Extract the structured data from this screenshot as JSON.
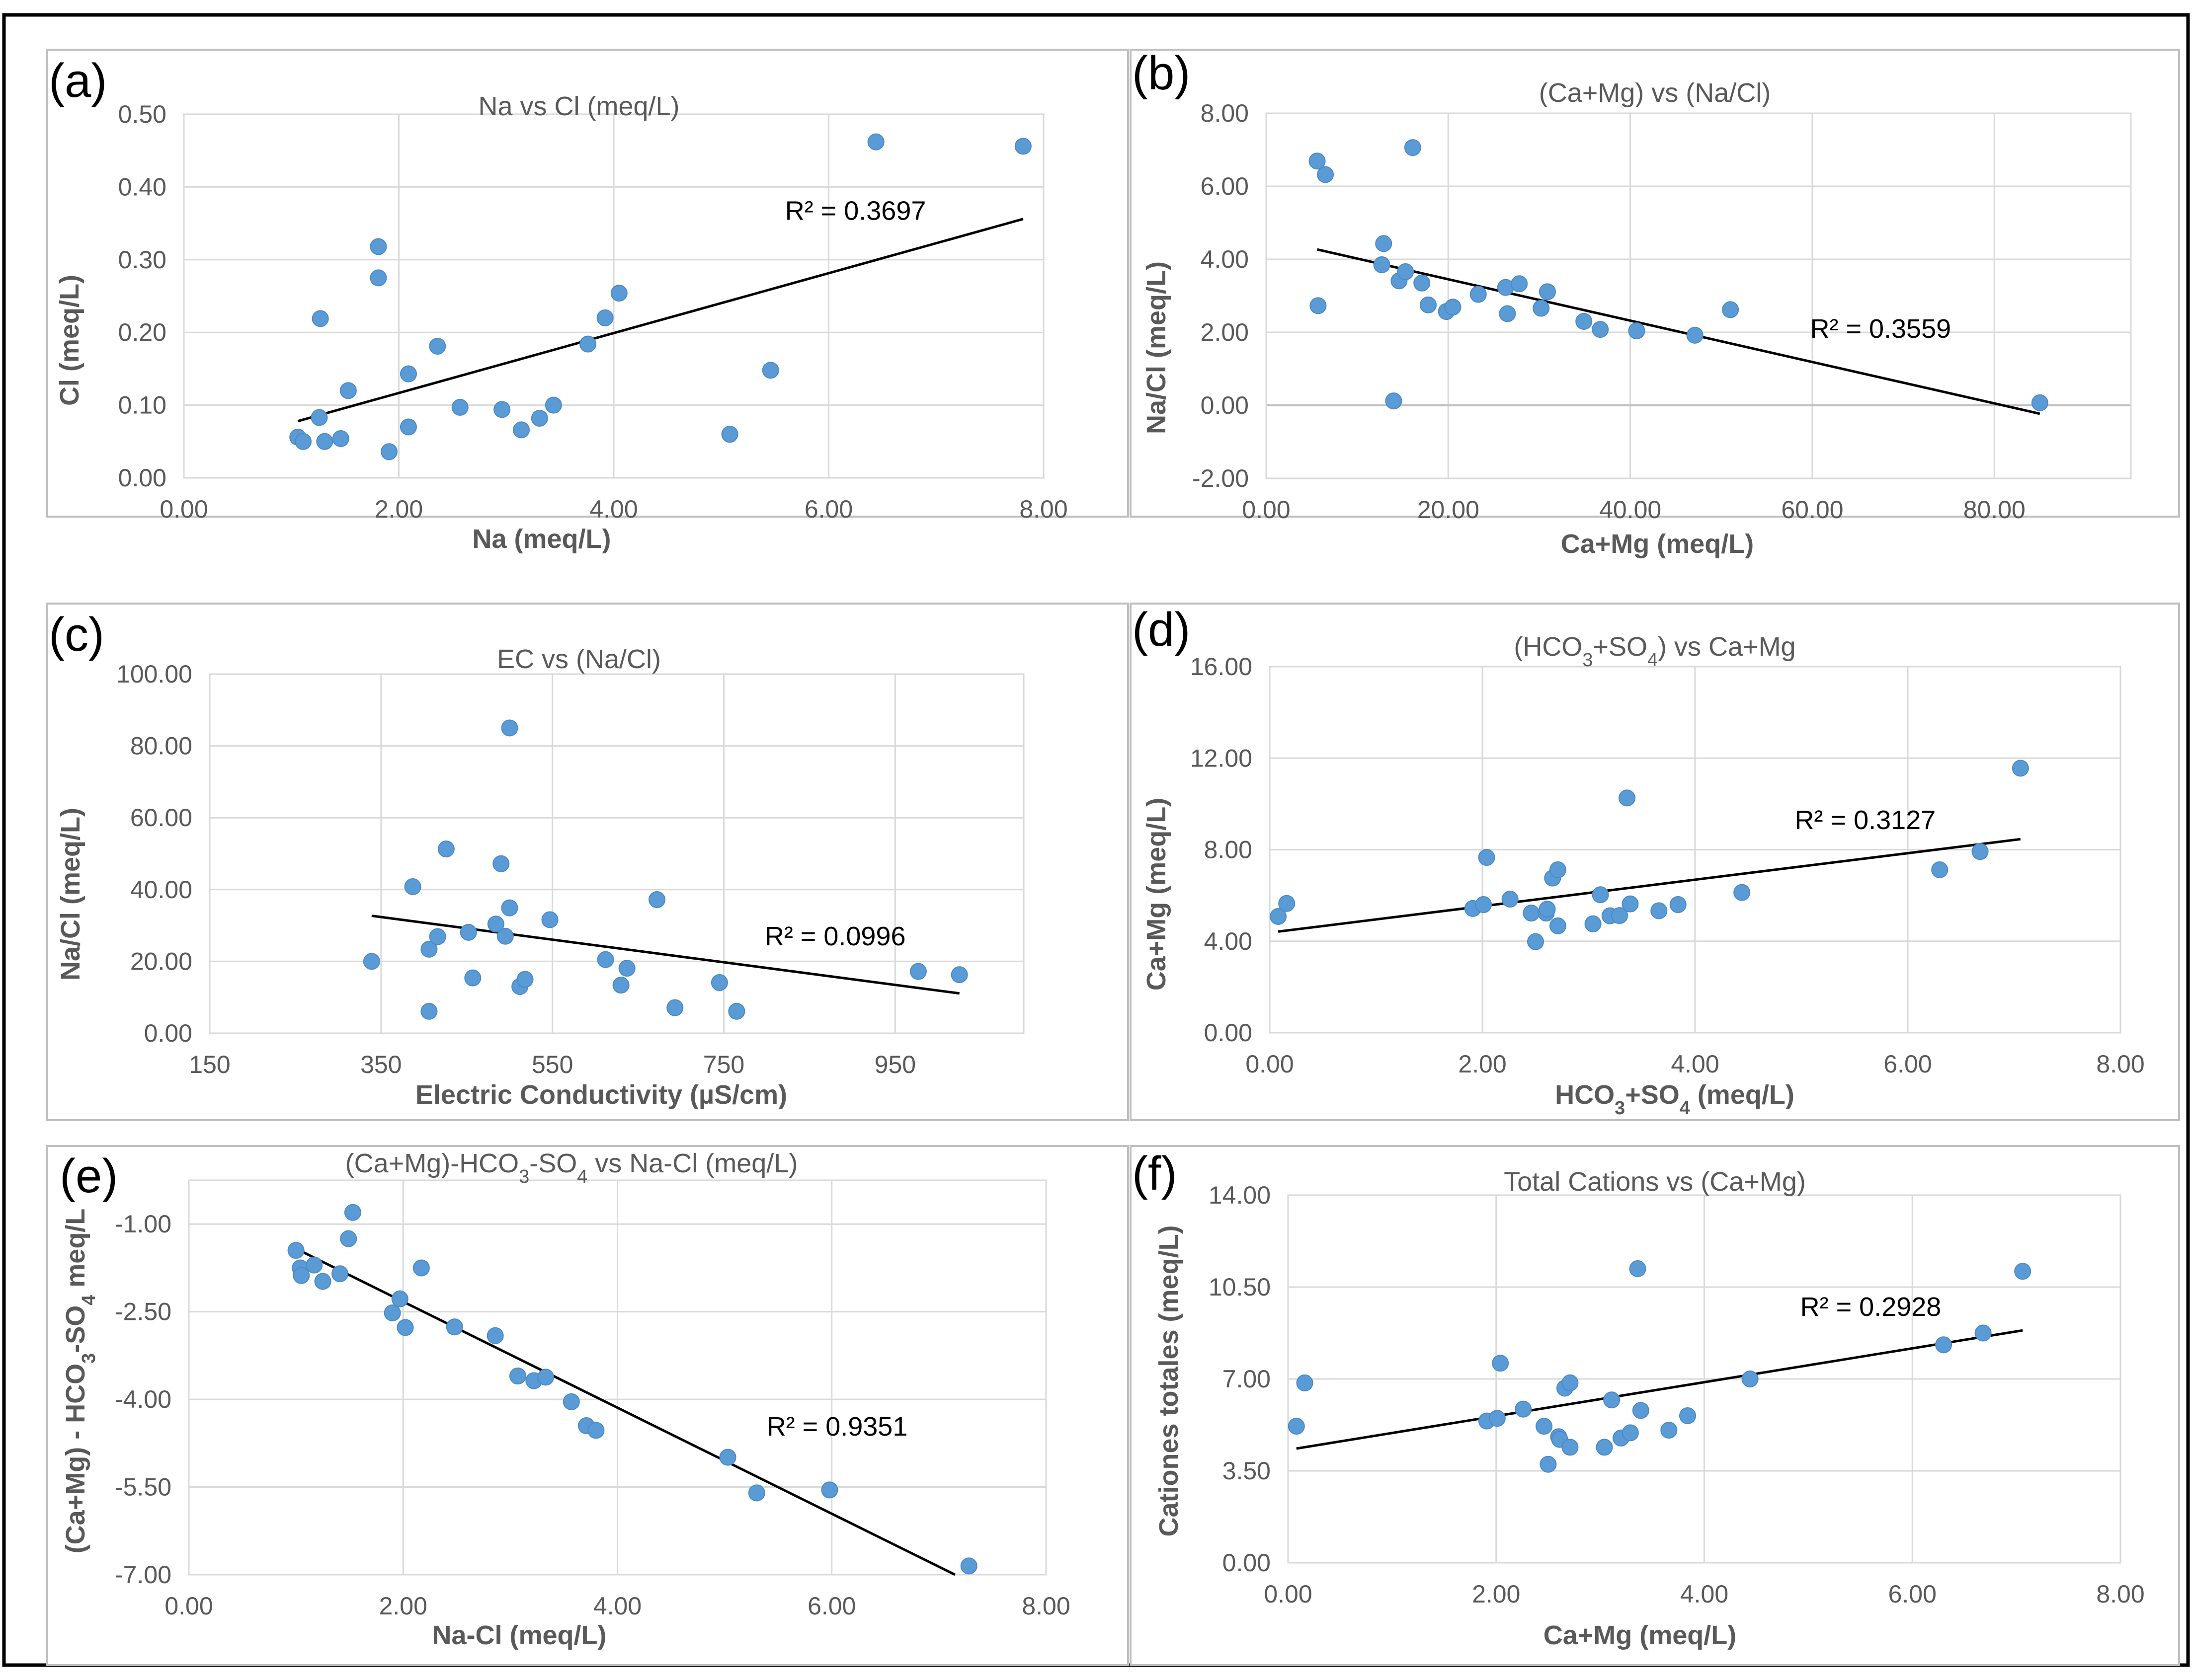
{
  "colors": {
    "point": "#5B9BD5",
    "point_edge": "#4A89C8",
    "trendline": "#000000",
    "grid": "#D9D9D9",
    "panel_border": "#BFBFBF",
    "outer_border": "#000000",
    "text": "#595959"
  },
  "chart_data": [
    {
      "id": "a",
      "panel_label": "(a)",
      "type": "scatter",
      "title": "Na vs Cl (meq/L)",
      "xlabel": "Na (meq/L)",
      "ylabel": "Cl (meq/L)",
      "xlim": [
        0,
        8
      ],
      "ylim": [
        0,
        0.5
      ],
      "x_ticks": [
        0,
        2,
        4,
        6,
        8
      ],
      "y_ticks": [
        0,
        0.1,
        0.2,
        0.3,
        0.4,
        0.5
      ],
      "x_tick_labels": [
        "0.00",
        "2.00",
        "4.00",
        "6.00",
        "8.00"
      ],
      "y_tick_labels": [
        "0.00",
        "0.10",
        "0.20",
        "0.30",
        "0.40",
        "0.50"
      ],
      "points": [
        [
          1.06,
          0.056
        ],
        [
          1.11,
          0.05
        ],
        [
          1.26,
          0.083
        ],
        [
          1.27,
          0.219
        ],
        [
          1.31,
          0.05
        ],
        [
          1.46,
          0.054
        ],
        [
          1.53,
          0.12
        ],
        [
          1.81,
          0.318
        ],
        [
          1.81,
          0.275
        ],
        [
          1.91,
          0.036
        ],
        [
          2.09,
          0.143
        ],
        [
          2.09,
          0.07
        ],
        [
          2.36,
          0.181
        ],
        [
          2.57,
          0.097
        ],
        [
          2.96,
          0.094
        ],
        [
          3.14,
          0.066
        ],
        [
          3.31,
          0.082
        ],
        [
          3.44,
          0.1
        ],
        [
          3.76,
          0.184
        ],
        [
          3.92,
          0.22
        ],
        [
          4.05,
          0.254
        ],
        [
          5.08,
          0.06
        ],
        [
          5.46,
          0.148
        ],
        [
          6.44,
          0.462
        ],
        [
          7.81,
          0.456
        ]
      ],
      "trendline": {
        "x": [
          1.06,
          7.81
        ],
        "y": [
          0.078,
          0.356
        ]
      },
      "r2_label": "R² = 0.3697",
      "r2_at": [
        6.25,
        0.355
      ]
    },
    {
      "id": "b",
      "panel_label": "(b)",
      "type": "scatter",
      "title": "(Ca+Mg) vs (Na/Cl)",
      "xlabel": "Ca+Mg (meq/L)",
      "ylabel": "Na/Cl (meq/L)",
      "xlim": [
        0,
        95
      ],
      "ylim": [
        -2,
        8
      ],
      "x_ticks": [
        0,
        20,
        40,
        60,
        80
      ],
      "y_ticks": [
        -2,
        0,
        2,
        4,
        6,
        8
      ],
      "x_tick_labels": [
        "0.00",
        "20.00",
        "40.00",
        "60.00",
        "80.00"
      ],
      "y_tick_labels": [
        "-2.00",
        "0.00",
        "2.00",
        "4.00",
        "6.00",
        "8.00"
      ],
      "points": [
        [
          5.6,
          6.69
        ],
        [
          5.7,
          2.73
        ],
        [
          6.5,
          6.32
        ],
        [
          12.7,
          3.85
        ],
        [
          12.9,
          4.43
        ],
        [
          14.0,
          0.12
        ],
        [
          14.6,
          3.41
        ],
        [
          15.3,
          3.66
        ],
        [
          16.1,
          7.06
        ],
        [
          17.1,
          3.35
        ],
        [
          17.8,
          2.75
        ],
        [
          19.8,
          2.57
        ],
        [
          20.5,
          2.69
        ],
        [
          23.3,
          3.04
        ],
        [
          26.3,
          3.23
        ],
        [
          26.5,
          2.51
        ],
        [
          27.8,
          3.33
        ],
        [
          30.2,
          2.66
        ],
        [
          30.9,
          3.11
        ],
        [
          34.9,
          2.3
        ],
        [
          36.7,
          2.08
        ],
        [
          40.7,
          2.04
        ],
        [
          47.1,
          1.92
        ],
        [
          51.0,
          2.62
        ],
        [
          85.0,
          0.07
        ]
      ],
      "trendline": {
        "x": [
          5.6,
          85.0
        ],
        "y": [
          4.27,
          -0.23
        ]
      },
      "r2_label": "R² = 0.3559",
      "r2_at": [
        67.5,
        1.85
      ]
    },
    {
      "id": "c",
      "panel_label": "(c)",
      "type": "scatter",
      "title": "EC vs (Na/Cl)",
      "xlabel": "Electric Conductivity (µS/cm)",
      "ylabel": "Na/Cl (meq/L)",
      "xlim": [
        150,
        1100
      ],
      "ylim": [
        0,
        100
      ],
      "x_ticks": [
        150,
        350,
        550,
        750,
        950
      ],
      "y_ticks": [
        0,
        20,
        40,
        60,
        80,
        100
      ],
      "x_tick_labels": [
        "150",
        "350",
        "550",
        "750",
        "950"
      ],
      "y_tick_labels": [
        "0.00",
        "20.00",
        "40.00",
        "60.00",
        "80.00",
        "100.00"
      ],
      "points": [
        [
          339,
          20.0
        ],
        [
          387,
          40.8
        ],
        [
          406,
          6.1
        ],
        [
          406,
          23.4
        ],
        [
          416,
          26.9
        ],
        [
          426,
          51.3
        ],
        [
          452,
          28.1
        ],
        [
          457,
          15.4
        ],
        [
          484,
          30.4
        ],
        [
          490,
          47.2
        ],
        [
          495,
          27.0
        ],
        [
          500,
          85.0
        ],
        [
          500,
          34.9
        ],
        [
          512,
          13.0
        ],
        [
          518,
          15.0
        ],
        [
          547,
          31.6
        ],
        [
          612,
          20.5
        ],
        [
          630,
          13.4
        ],
        [
          637,
          18.1
        ],
        [
          672,
          37.2
        ],
        [
          693,
          7.1
        ],
        [
          745,
          14.1
        ],
        [
          765,
          6.1
        ],
        [
          977,
          17.2
        ],
        [
          1025,
          16.3
        ]
      ],
      "trendline": {
        "x": [
          339,
          1025
        ],
        "y": [
          32.7,
          11.1
        ]
      },
      "r2_label": "R² = 0.0996",
      "r2_at": [
        880,
        24.5
      ]
    },
    {
      "id": "d",
      "panel_label": "(d)",
      "type": "scatter",
      "title": "(HCO3+SO4) vs Ca+Mg",
      "xlabel": "HCO3+SO4 (meq/L)",
      "ylabel": "Ca+Mg (meq/L)",
      "xlim": [
        0,
        8
      ],
      "ylim": [
        0,
        16
      ],
      "x_ticks": [
        0,
        2,
        4,
        6,
        8
      ],
      "y_ticks": [
        0,
        4,
        8,
        12,
        16
      ],
      "x_tick_labels": [
        "0.00",
        "2.00",
        "4.00",
        "6.00",
        "8.00"
      ],
      "y_tick_labels": [
        "0.00",
        "4.00",
        "8.00",
        "12.00",
        "16.00"
      ],
      "points": [
        [
          0.08,
          5.08
        ],
        [
          0.16,
          5.65
        ],
        [
          1.91,
          5.43
        ],
        [
          2.01,
          5.6
        ],
        [
          2.04,
          7.66
        ],
        [
          2.26,
          5.84
        ],
        [
          2.46,
          5.23
        ],
        [
          2.5,
          3.98
        ],
        [
          2.6,
          5.23
        ],
        [
          2.61,
          5.4
        ],
        [
          2.66,
          6.76
        ],
        [
          2.71,
          7.12
        ],
        [
          2.71,
          4.67
        ],
        [
          3.04,
          4.76
        ],
        [
          3.11,
          6.03
        ],
        [
          3.2,
          5.11
        ],
        [
          3.29,
          5.12
        ],
        [
          3.36,
          10.26
        ],
        [
          3.39,
          5.63
        ],
        [
          3.66,
          5.33
        ],
        [
          3.84,
          5.6
        ],
        [
          4.44,
          6.13
        ],
        [
          6.3,
          7.12
        ],
        [
          6.68,
          7.92
        ],
        [
          7.06,
          11.56
        ]
      ],
      "trendline": {
        "x": [
          0.08,
          7.06
        ],
        "y": [
          4.42,
          8.46
        ]
      },
      "r2_label": "R² = 0.3127",
      "r2_at": [
        5.6,
        8.9
      ]
    },
    {
      "id": "e",
      "panel_label": "(e)",
      "type": "scatter",
      "title": "(Ca+Mg)-HCO3-SO4 vs Na-Cl (meq/L)",
      "xlabel": "Na-Cl (meq/L)",
      "ylabel": "(Ca+Mg) - HCO3-SO4 meq/L",
      "xlim": [
        0,
        8
      ],
      "ylim": [
        -7,
        -0.25
      ],
      "x_ticks": [
        0,
        2,
        4,
        6,
        8
      ],
      "y_ticks": [
        -7,
        -5.5,
        -4,
        -2.5,
        -1
      ],
      "x_tick_labels": [
        "0.00",
        "2.00",
        "4.00",
        "6.00",
        "8.00"
      ],
      "y_tick_labels": [
        "-7.00",
        "-5.50",
        "-4.00",
        "-2.50",
        "-1.00"
      ],
      "points": [
        [
          1.0,
          -1.45
        ],
        [
          1.04,
          -1.75
        ],
        [
          1.05,
          -1.88
        ],
        [
          1.17,
          -1.7
        ],
        [
          1.25,
          -1.98
        ],
        [
          1.41,
          -1.85
        ],
        [
          1.49,
          -1.25
        ],
        [
          1.53,
          -0.8
        ],
        [
          1.9,
          -2.52
        ],
        [
          1.97,
          -2.28
        ],
        [
          2.02,
          -2.77
        ],
        [
          2.17,
          -1.75
        ],
        [
          2.48,
          -2.76
        ],
        [
          2.86,
          -2.91
        ],
        [
          3.07,
          -3.6
        ],
        [
          3.22,
          -3.68
        ],
        [
          3.33,
          -3.62
        ],
        [
          3.57,
          -4.04
        ],
        [
          3.71,
          -4.45
        ],
        [
          3.8,
          -4.53
        ],
        [
          5.03,
          -4.99
        ],
        [
          5.3,
          -5.6
        ],
        [
          5.98,
          -5.55
        ],
        [
          7.28,
          -6.85
        ]
      ],
      "trendline": {
        "x": [
          1.0,
          7.15
        ],
        "y": [
          -1.42,
          -7.0
        ]
      },
      "r2_label": "R² = 0.9351",
      "r2_at": [
        6.05,
        -4.62
      ]
    },
    {
      "id": "f",
      "panel_label": "(f)",
      "type": "scatter",
      "title": "Total Cations  vs (Ca+Mg)",
      "xlabel": "Ca+Mg (meq/L)",
      "ylabel": "Cationes totales (meq/L)",
      "xlim": [
        0,
        8
      ],
      "ylim": [
        0,
        14
      ],
      "x_ticks": [
        0,
        2,
        4,
        6,
        8
      ],
      "y_ticks": [
        0,
        3.5,
        7,
        10.5,
        14
      ],
      "x_tick_labels": [
        "0.00",
        "2.00",
        "4.00",
        "6.00",
        "8.00"
      ],
      "y_tick_labels": [
        "0.00",
        "3.50",
        "7.00",
        "10.50",
        "14.00"
      ],
      "points": [
        [
          0.08,
          5.2
        ],
        [
          0.16,
          6.85
        ],
        [
          1.91,
          5.4
        ],
        [
          2.01,
          5.5
        ],
        [
          2.04,
          7.6
        ],
        [
          2.26,
          5.85
        ],
        [
          2.46,
          5.2
        ],
        [
          2.5,
          3.75
        ],
        [
          2.6,
          4.8
        ],
        [
          2.61,
          4.7
        ],
        [
          2.66,
          6.65
        ],
        [
          2.71,
          6.85
        ],
        [
          2.71,
          4.4
        ],
        [
          3.04,
          4.4
        ],
        [
          3.11,
          6.2
        ],
        [
          3.2,
          4.75
        ],
        [
          3.29,
          4.95
        ],
        [
          3.36,
          11.2
        ],
        [
          3.39,
          5.8
        ],
        [
          3.66,
          5.05
        ],
        [
          3.84,
          5.6
        ],
        [
          4.44,
          7.0
        ],
        [
          6.3,
          8.3
        ],
        [
          6.68,
          8.75
        ],
        [
          7.06,
          11.1
        ]
      ],
      "trendline": {
        "x": [
          0.08,
          7.06
        ],
        "y": [
          4.35,
          8.85
        ]
      },
      "r2_label": "R² = 0.2928",
      "r2_at": [
        5.6,
        9.4
      ]
    }
  ]
}
